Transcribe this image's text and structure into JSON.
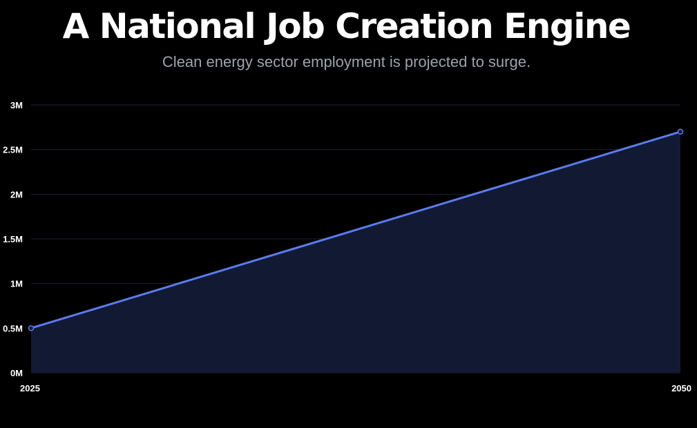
{
  "header": {
    "title": "A National Job Creation Engine",
    "subtitle": "Clean energy sector employment is projected to surge."
  },
  "colors": {
    "background": "#000000",
    "line": "#5b7cf0",
    "area_fill": "#121a33",
    "grid": "#1f2333",
    "subtitle": "#9ca3af",
    "tick_text": "#ffffff"
  },
  "chart_data": {
    "type": "area",
    "title": "",
    "xlabel": "",
    "ylabel": "",
    "x": [
      2025,
      2050
    ],
    "x_tick_labels": [
      "2025",
      "2050"
    ],
    "series": [
      {
        "values": [
          500000,
          2700000
        ]
      }
    ],
    "ylim": [
      0,
      3000000
    ],
    "y_ticks": [
      0,
      500000,
      1000000,
      1500000,
      2000000,
      2500000,
      3000000
    ],
    "y_tick_labels": [
      "0M",
      "0.5M",
      "1M",
      "1.5M",
      "2M",
      "2.5M",
      "3M"
    ],
    "grid": true,
    "legend": "none",
    "markers": true
  }
}
